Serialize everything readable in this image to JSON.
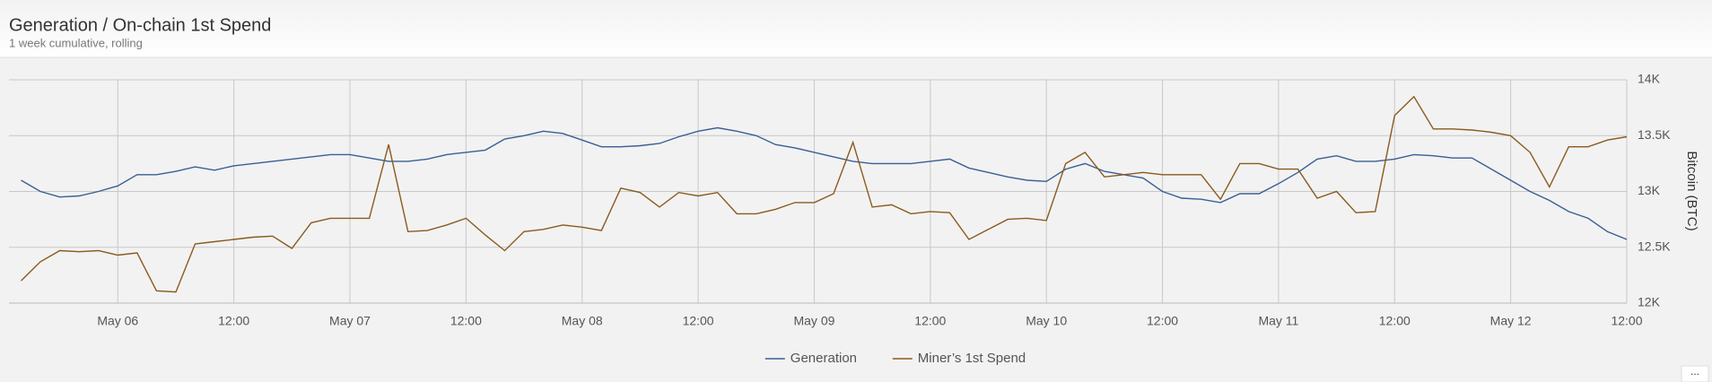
{
  "chart_data": {
    "type": "line",
    "title": "Generation / On-chain 1st Spend",
    "subtitle": "1 week cumulative, rolling",
    "y_axis_label": "Bitcoin (BTC)",
    "x": [
      "May 05 14:00",
      "May 05 16:00",
      "May 05 18:00",
      "May 05 20:00",
      "May 05 22:00",
      "May 06 00:00",
      "May 06 02:00",
      "May 06 04:00",
      "May 06 06:00",
      "May 06 08:00",
      "May 06 10:00",
      "May 06 12:00",
      "May 06 14:00",
      "May 06 16:00",
      "May 06 18:00",
      "May 06 20:00",
      "May 06 22:00",
      "May 07 00:00",
      "May 07 02:00",
      "May 07 04:00",
      "May 07 06:00",
      "May 07 08:00",
      "May 07 10:00",
      "May 07 12:00",
      "May 07 14:00",
      "May 07 16:00",
      "May 07 18:00",
      "May 07 20:00",
      "May 07 22:00",
      "May 08 00:00",
      "May 08 02:00",
      "May 08 04:00",
      "May 08 06:00",
      "May 08 08:00",
      "May 08 10:00",
      "May 08 12:00",
      "May 08 14:00",
      "May 08 16:00",
      "May 08 18:00",
      "May 08 20:00",
      "May 08 22:00",
      "May 09 00:00",
      "May 09 02:00",
      "May 09 04:00",
      "May 09 06:00",
      "May 09 08:00",
      "May 09 10:00",
      "May 09 12:00",
      "May 09 14:00",
      "May 09 16:00",
      "May 09 18:00",
      "May 09 20:00",
      "May 09 22:00",
      "May 10 00:00",
      "May 10 02:00",
      "May 10 04:00",
      "May 10 06:00",
      "May 10 08:00",
      "May 10 10:00",
      "May 10 12:00",
      "May 10 14:00",
      "May 10 16:00",
      "May 10 18:00",
      "May 10 20:00",
      "May 10 22:00",
      "May 11 00:00",
      "May 11 02:00",
      "May 11 04:00",
      "May 11 06:00",
      "May 11 08:00",
      "May 11 10:00",
      "May 11 12:00",
      "May 11 14:00",
      "May 11 16:00",
      "May 11 18:00",
      "May 11 20:00",
      "May 11 22:00",
      "May 12 00:00",
      "May 12 02:00",
      "May 12 04:00",
      "May 12 06:00",
      "May 12 08:00",
      "May 12 10:00",
      "May 12 12:00"
    ],
    "series": [
      {
        "name": "Generation",
        "color": "#3a5f94",
        "values": [
          13100,
          13000,
          12950,
          12960,
          13000,
          13050,
          13150,
          13150,
          13180,
          13220,
          13190,
          13230,
          13250,
          13270,
          13290,
          13310,
          13330,
          13330,
          13300,
          13270,
          13270,
          13290,
          13330,
          13350,
          13370,
          13470,
          13500,
          13540,
          13520,
          13460,
          13400,
          13400,
          13410,
          13430,
          13490,
          13540,
          13570,
          13540,
          13500,
          13420,
          13390,
          13350,
          13310,
          13270,
          13250,
          13250,
          13250,
          13270,
          13290,
          13210,
          13170,
          13130,
          13100,
          13090,
          13200,
          13250,
          13180,
          13150,
          13120,
          13000,
          12940,
          12930,
          12900,
          12980,
          12980,
          13070,
          13170,
          13290,
          13320,
          13270,
          13270,
          13290,
          13330,
          13320,
          13300,
          13300,
          13200,
          13100,
          13000,
          12920,
          12820,
          12760,
          12640,
          12570
        ]
      },
      {
        "name": "Miner’s 1st Spend",
        "color": "#8b5a1e",
        "values": [
          12200,
          12370,
          12470,
          12460,
          12470,
          12430,
          12450,
          12110,
          12100,
          12530,
          12550,
          12570,
          12590,
          12600,
          12490,
          12720,
          12760,
          12760,
          12760,
          13420,
          12640,
          12650,
          12700,
          12760,
          12610,
          12470,
          12640,
          12660,
          12700,
          12680,
          12650,
          13030,
          12990,
          12860,
          12990,
          12960,
          12990,
          12800,
          12800,
          12840,
          12900,
          12900,
          12980,
          13440,
          12860,
          12880,
          12800,
          12820,
          12810,
          12570,
          12660,
          12750,
          12760,
          12740,
          13250,
          13350,
          13130,
          13150,
          13170,
          13150,
          13150,
          13150,
          12930,
          13250,
          13250,
          13200,
          13200,
          12940,
          13000,
          12810,
          12820,
          13680,
          13850,
          13560,
          13560,
          13550,
          13530,
          13500,
          13350,
          13040,
          13400,
          13400,
          13460,
          13490
        ]
      }
    ],
    "xlim": [
      "May 05 12:45",
      "May 12 12:00"
    ],
    "xticks": [
      {
        "value": "May 06 00:00",
        "label": "May 06"
      },
      {
        "value": "May 06 12:00",
        "label": "12:00"
      },
      {
        "value": "May 07 00:00",
        "label": "May 07"
      },
      {
        "value": "May 07 12:00",
        "label": "12:00"
      },
      {
        "value": "May 08 00:00",
        "label": "May 08"
      },
      {
        "value": "May 08 12:00",
        "label": "12:00"
      },
      {
        "value": "May 09 00:00",
        "label": "May 09"
      },
      {
        "value": "May 09 12:00",
        "label": "12:00"
      },
      {
        "value": "May 10 00:00",
        "label": "May 10"
      },
      {
        "value": "May 10 12:00",
        "label": "12:00"
      },
      {
        "value": "May 11 00:00",
        "label": "May 11"
      },
      {
        "value": "May 11 12:00",
        "label": "12:00"
      },
      {
        "value": "May 12 00:00",
        "label": "May 12"
      },
      {
        "value": "May 12 12:00",
        "label": "12:00"
      }
    ],
    "ylim": [
      12000,
      14000
    ],
    "yticks": [
      {
        "value": 12000,
        "label": "12K"
      },
      {
        "value": 12500,
        "label": "12.5K"
      },
      {
        "value": 13000,
        "label": "13K"
      },
      {
        "value": 13500,
        "label": "13.5K"
      },
      {
        "value": 14000,
        "label": "14K"
      }
    ],
    "grid": true,
    "legend": "bottom"
  }
}
